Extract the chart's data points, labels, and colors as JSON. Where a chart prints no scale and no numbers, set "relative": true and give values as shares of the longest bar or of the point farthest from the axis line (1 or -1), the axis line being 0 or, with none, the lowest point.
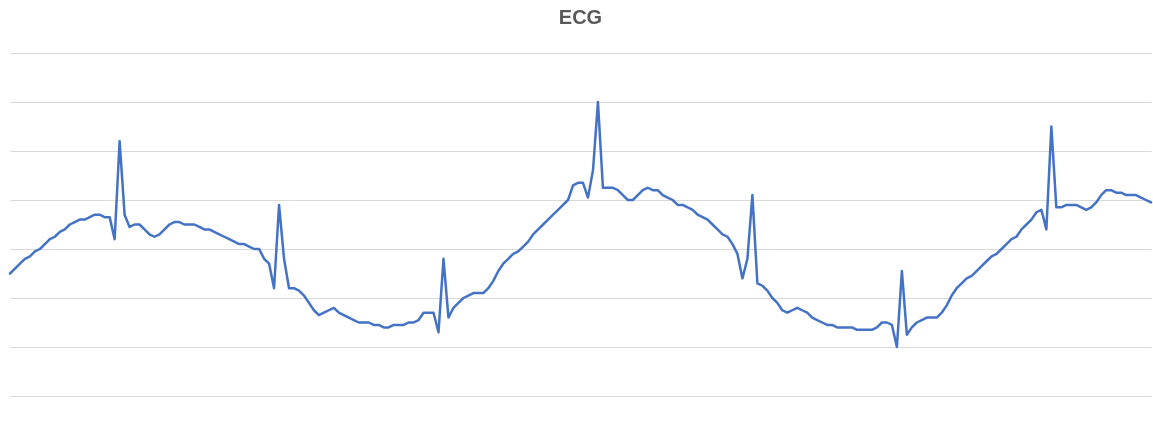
{
  "chart_data": {
    "type": "line",
    "title": "ECG",
    "relative": true,
    "grid": true,
    "categories": [
      null,
      null,
      null,
      null,
      null,
      null,
      null,
      null,
      null,
      null,
      null,
      null,
      null,
      null,
      null,
      null,
      null,
      null,
      null,
      null,
      null,
      null,
      null,
      null,
      null,
      null,
      null,
      null,
      null,
      null,
      null,
      null,
      null,
      null,
      null,
      null,
      null,
      null,
      null,
      null,
      null,
      null,
      null,
      null,
      null,
      null,
      null,
      null,
      null,
      null,
      null,
      null,
      null,
      null,
      null,
      null,
      null,
      null,
      null,
      null,
      null,
      null,
      null,
      null,
      null,
      null,
      null,
      null,
      null,
      null,
      null,
      null,
      null,
      null,
      null,
      null,
      null,
      null,
      null,
      null,
      null,
      null,
      null,
      null,
      null,
      null,
      null,
      null,
      null,
      null,
      null,
      null,
      null,
      null,
      null,
      null,
      null,
      null,
      null,
      null,
      null,
      null,
      null,
      null,
      null,
      null,
      null,
      null,
      null,
      null,
      null,
      null,
      null,
      null,
      null,
      null,
      null,
      null,
      null,
      null,
      null,
      null,
      null,
      null,
      null,
      null,
      null,
      null,
      null,
      null,
      null,
      null,
      null,
      null,
      null,
      null,
      null,
      null,
      null,
      null,
      null,
      null,
      null,
      null,
      null,
      null,
      null,
      null,
      null,
      null,
      null,
      null,
      null,
      null,
      null,
      null,
      null,
      null,
      null,
      null,
      null,
      null,
      null,
      null,
      null,
      null,
      null,
      null,
      null,
      null,
      null,
      null,
      null,
      null,
      null,
      null,
      null,
      null,
      null,
      null,
      null,
      null,
      null,
      null,
      null,
      null,
      null,
      null,
      null,
      null,
      null,
      null,
      null,
      null,
      null,
      null,
      null,
      null,
      null,
      null,
      null,
      null,
      null,
      null,
      null,
      null,
      null,
      null,
      null,
      null,
      null,
      null,
      null,
      null,
      null,
      null,
      null,
      null,
      null,
      null,
      null,
      null,
      null,
      null,
      null,
      null,
      null,
      null,
      null,
      null
    ],
    "series": [
      {
        "color": "#4472c4",
        "values": [
          0.3,
          0.32,
          0.34,
          0.36,
          0.37,
          0.39,
          0.4,
          0.42,
          0.44,
          0.45,
          0.47,
          0.48,
          0.5,
          0.51,
          0.52,
          0.52,
          0.53,
          0.54,
          0.54,
          0.53,
          0.53,
          0.44,
          0.84,
          0.54,
          0.49,
          0.5,
          0.5,
          0.48,
          0.46,
          0.45,
          0.46,
          0.48,
          0.5,
          0.51,
          0.51,
          0.5,
          0.5,
          0.5,
          0.49,
          0.48,
          0.48,
          0.47,
          0.46,
          0.45,
          0.44,
          0.43,
          0.42,
          0.42,
          0.41,
          0.4,
          0.4,
          0.36,
          0.34,
          0.24,
          0.58,
          0.36,
          0.24,
          0.24,
          0.23,
          0.21,
          0.18,
          0.15,
          0.13,
          0.14,
          0.15,
          0.16,
          0.14,
          0.13,
          0.12,
          0.11,
          0.1,
          0.1,
          0.1,
          0.09,
          0.09,
          0.08,
          0.08,
          0.09,
          0.09,
          0.09,
          0.1,
          0.1,
          0.11,
          0.14,
          0.14,
          0.14,
          0.06,
          0.36,
          0.12,
          0.16,
          0.18,
          0.2,
          0.21,
          0.22,
          0.22,
          0.22,
          0.24,
          0.27,
          0.31,
          0.34,
          0.36,
          0.38,
          0.39,
          0.41,
          0.43,
          0.46,
          0.48,
          0.5,
          0.52,
          0.54,
          0.56,
          0.58,
          0.6,
          0.66,
          0.67,
          0.67,
          0.61,
          0.72,
          1,
          0.65,
          0.65,
          0.65,
          0.64,
          0.62,
          0.6,
          0.6,
          0.62,
          0.64,
          0.65,
          0.64,
          0.64,
          0.62,
          0.61,
          0.6,
          0.58,
          0.58,
          0.57,
          0.56,
          0.54,
          0.53,
          0.52,
          0.5,
          0.48,
          0.46,
          0.45,
          0.42,
          0.38,
          0.28,
          0.36,
          0.62,
          0.26,
          0.25,
          0.23,
          0.2,
          0.18,
          0.15,
          0.14,
          0.15,
          0.16,
          0.15,
          0.14,
          0.12,
          0.11,
          0.1,
          0.09,
          0.09,
          0.08,
          0.08,
          0.08,
          0.08,
          0.07,
          0.07,
          0.07,
          0.07,
          0.08,
          0.1,
          0.1,
          0.09,
          0,
          0.31,
          0.05,
          0.08,
          0.1,
          0.11,
          0.12,
          0.12,
          0.12,
          0.14,
          0.17,
          0.21,
          0.24,
          0.26,
          0.28,
          0.29,
          0.31,
          0.33,
          0.35,
          0.37,
          0.38,
          0.4,
          0.42,
          0.44,
          0.45,
          0.48,
          0.5,
          0.52,
          0.55,
          0.56,
          0.48,
          0.9,
          0.57,
          0.57,
          0.58,
          0.58,
          0.58,
          0.57,
          0.56,
          0.57,
          0.59,
          0.62,
          0.64,
          0.64,
          0.63,
          0.63,
          0.62,
          0.62,
          0.62,
          0.61,
          0.6,
          0.59
        ]
      }
    ]
  }
}
